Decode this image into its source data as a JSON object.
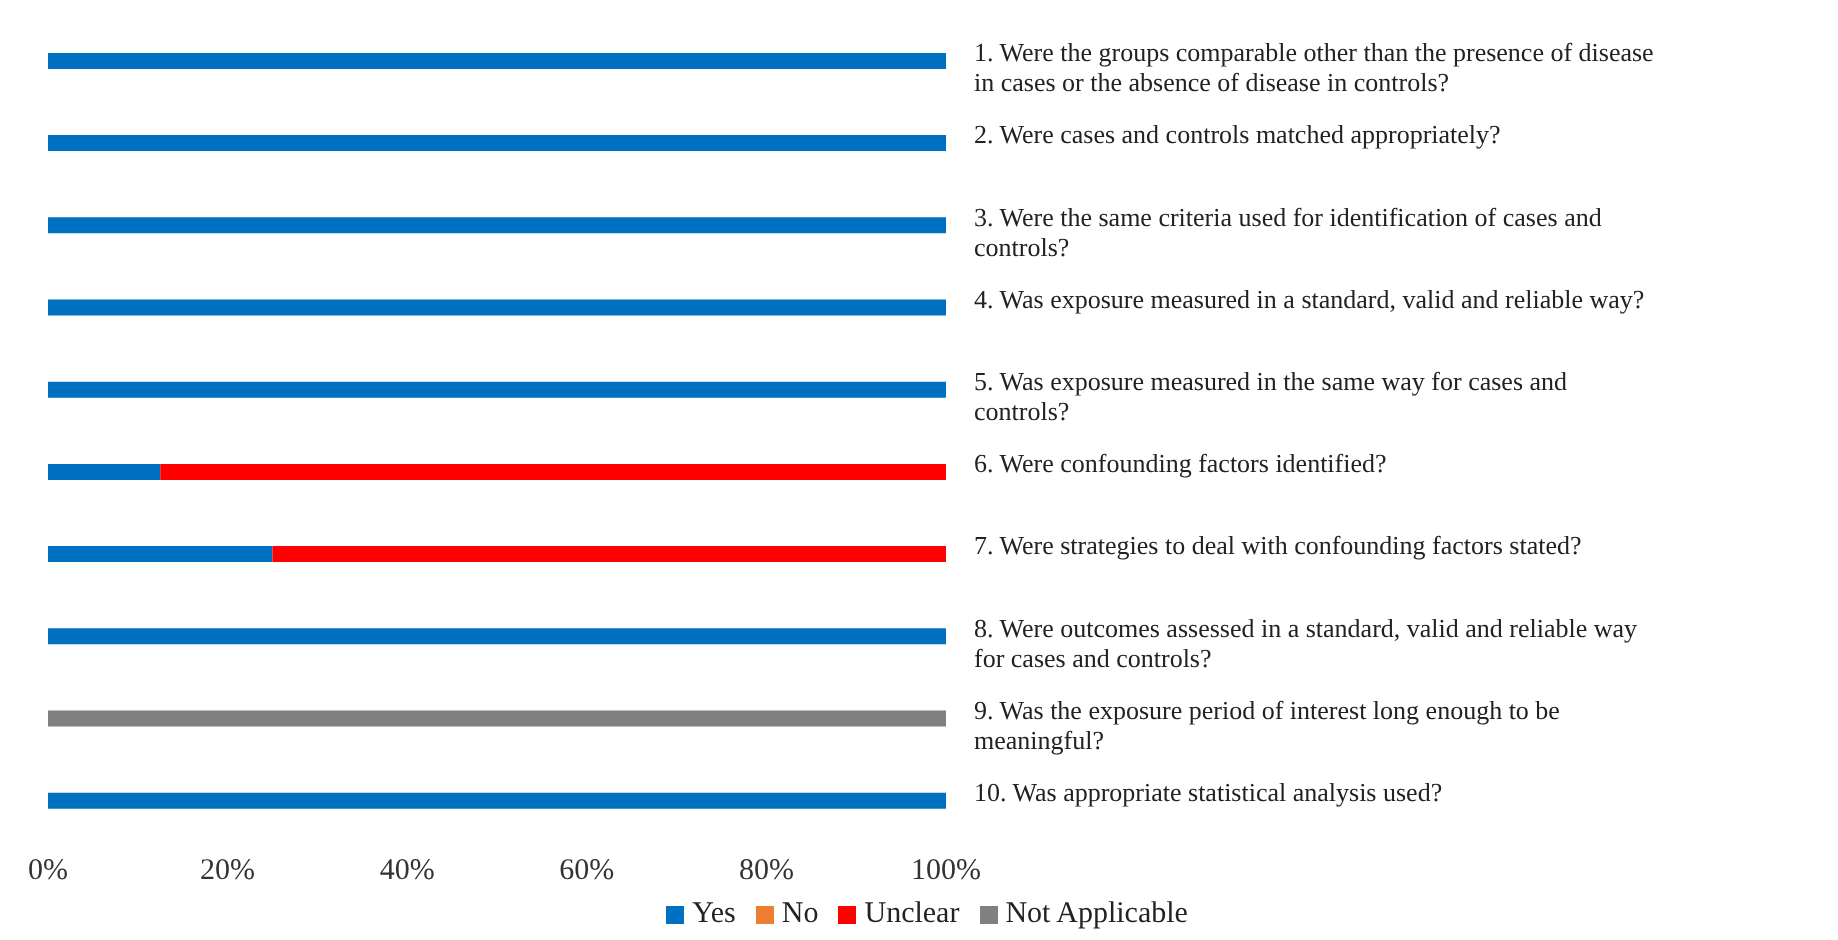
{
  "chart_data": {
    "type": "bar",
    "orientation": "horizontal",
    "stacked": true,
    "categories": [
      "1. Were the groups comparable other than the presence of disease in cases or the absence of disease in controls?",
      "2. Were cases and controls matched appropriately?",
      "3. Were the same criteria used for identification of cases and controls?",
      "4. Was exposure measured in a standard, valid and reliable way?",
      "5. Was exposure measured in the same way for cases and controls?",
      "6. Were confounding factors identified?",
      "7. Were strategies to deal with confounding factors stated?",
      "8. Were outcomes assessed in a standard, valid and reliable way for cases and controls?",
      "9. Was the exposure period of interest long enough to be meaningful?",
      "10. Was appropriate statistical analysis used?"
    ],
    "series": [
      {
        "name": "Yes",
        "color": "#0070c0",
        "values": [
          100,
          100,
          100,
          100,
          100,
          12.5,
          25,
          100,
          0,
          100
        ]
      },
      {
        "name": "No",
        "color": "#ed7d31",
        "values": [
          0,
          0,
          0,
          0,
          0,
          0,
          0,
          0,
          0,
          0
        ]
      },
      {
        "name": "Unclear",
        "color": "#ff0000",
        "values": [
          0,
          0,
          0,
          0,
          0,
          87.5,
          75,
          0,
          0,
          0
        ]
      },
      {
        "name": "Not Applicable",
        "color": "#808080",
        "values": [
          0,
          0,
          0,
          0,
          0,
          0,
          0,
          0,
          100,
          0
        ]
      }
    ],
    "xlim": [
      0,
      100
    ],
    "xticks": [
      {
        "value": 0,
        "label": "0%"
      },
      {
        "value": 20,
        "label": "20%"
      },
      {
        "value": 40,
        "label": "40%"
      },
      {
        "value": 60,
        "label": "60%"
      },
      {
        "value": 80,
        "label": "80%"
      },
      {
        "value": 100,
        "label": "100%"
      }
    ],
    "grid": false,
    "legend": "bottom"
  }
}
